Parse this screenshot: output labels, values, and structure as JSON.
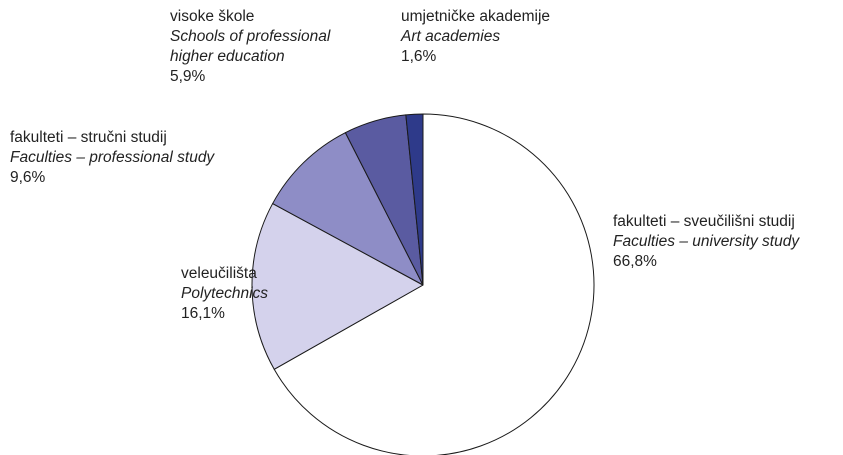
{
  "chart_data": {
    "type": "pie",
    "start_angle_deg": 0,
    "direction": "clockwise",
    "slices": [
      {
        "label_hr": "fakulteti – sveučilišni studij",
        "label_en": "Faculties – university study",
        "value": 66.8,
        "display": "66,8%",
        "color": "#ffffff"
      },
      {
        "label_hr": "veleučilišta",
        "label_en": "Polytechnics",
        "value": 16.1,
        "display": "16,1%",
        "color": "#d4d2ec"
      },
      {
        "label_hr": "fakulteti – stručni studij",
        "label_en": "Faculties – professional study",
        "value": 9.6,
        "display": "9,6%",
        "color": "#8e8dc6"
      },
      {
        "label_hr": "visoke škole",
        "label_en": "Schools of professional higher education",
        "display_en_lines": [
          "Schools of professional",
          "higher education"
        ],
        "value": 5.9,
        "display": "5,9%",
        "color": "#5a5ba1"
      },
      {
        "label_hr": "umjetničke akademije",
        "label_en": "Art academies",
        "value": 1.6,
        "display": "1,6%",
        "color": "#2e3a8a"
      }
    ]
  }
}
